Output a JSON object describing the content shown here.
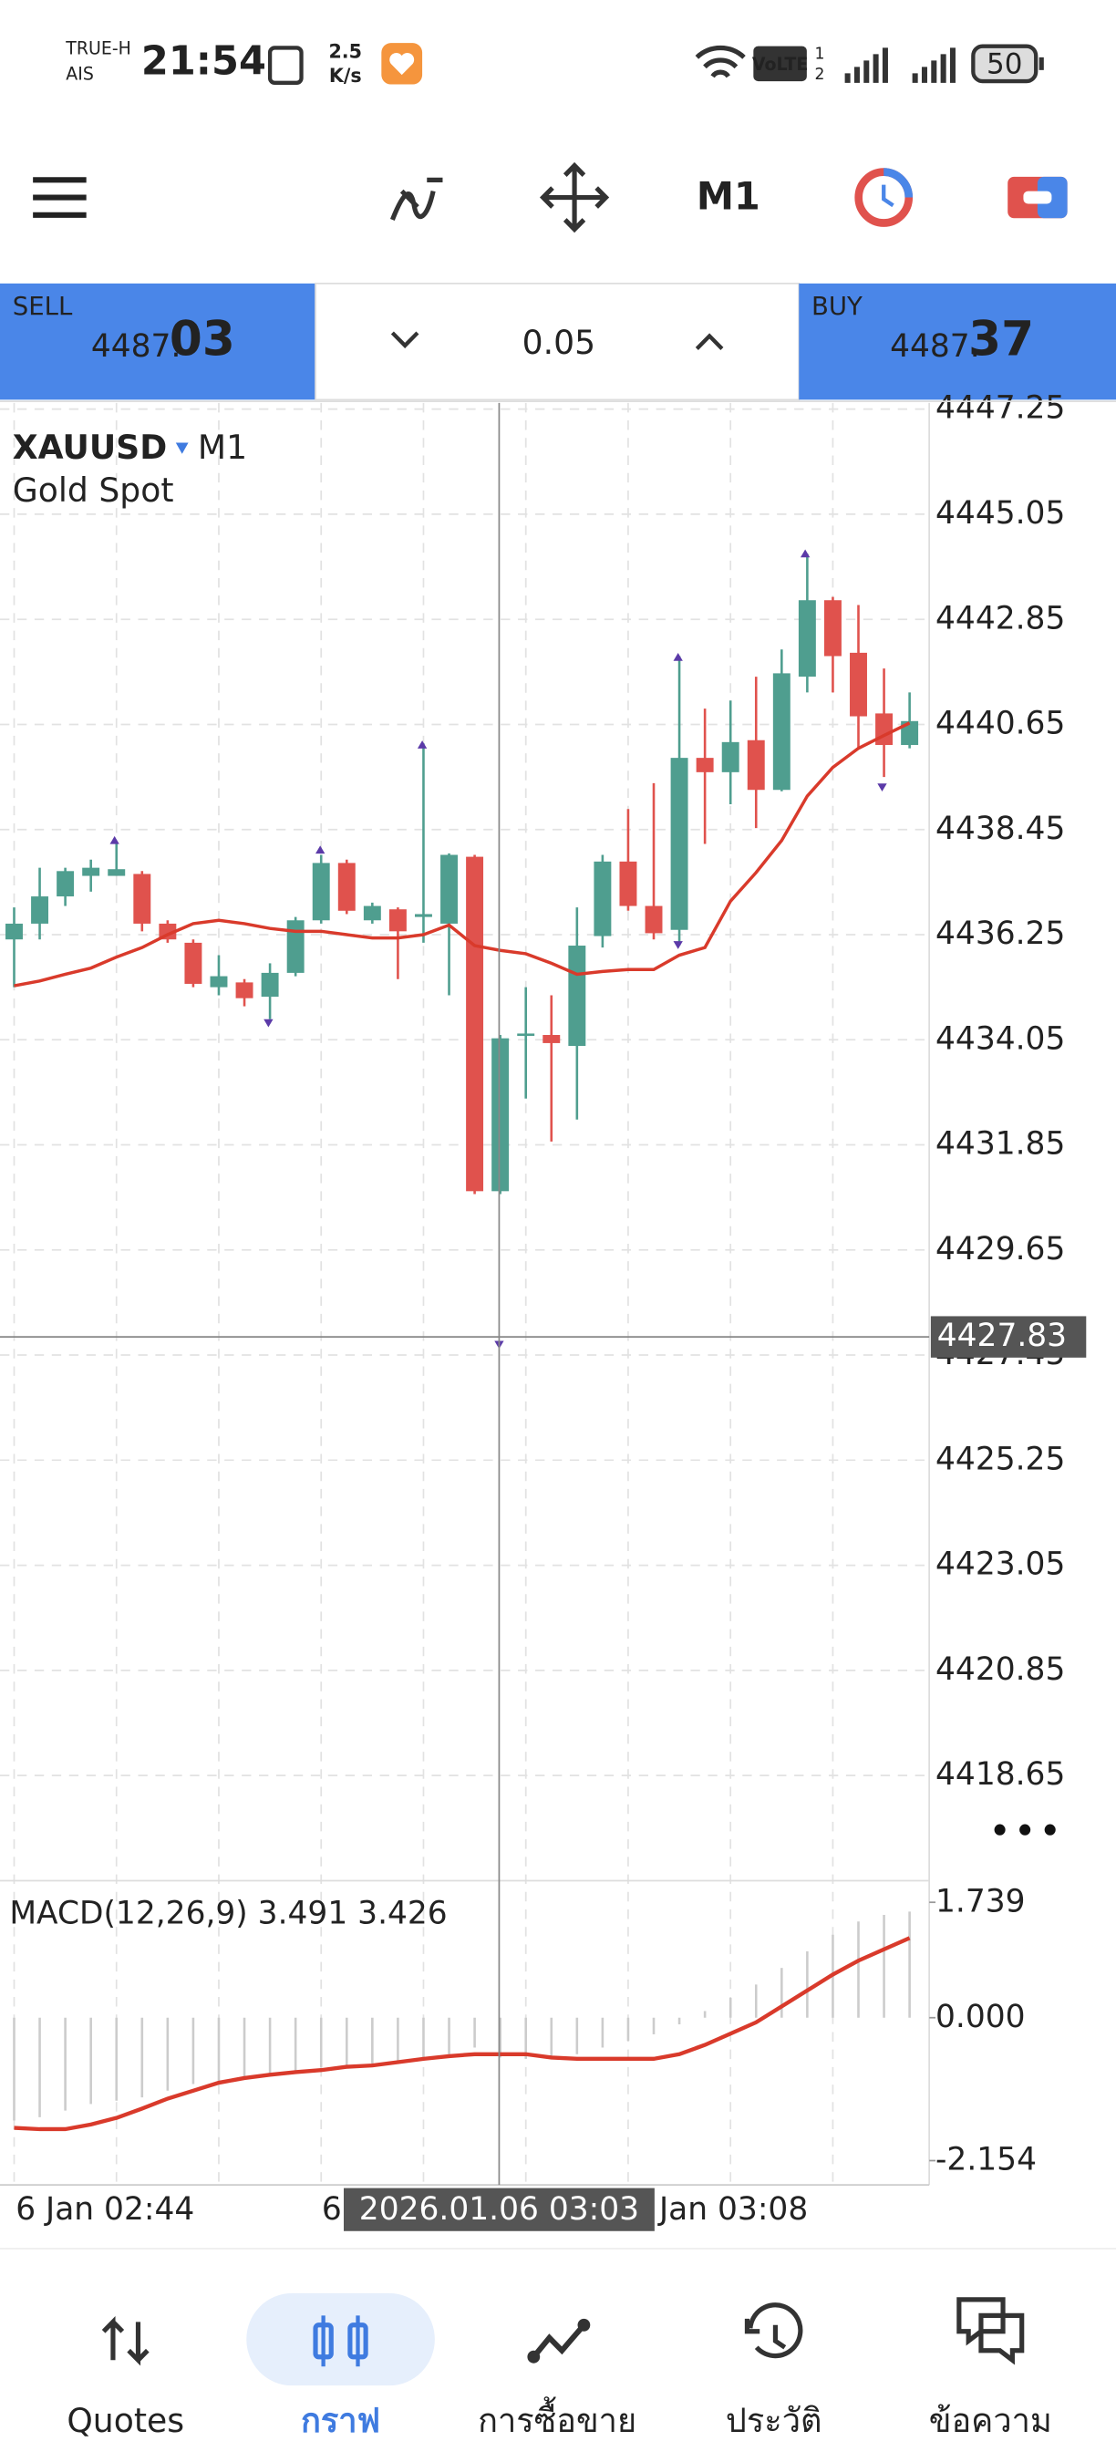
{
  "status_bar": {
    "carrier_1": "TRUE-H",
    "carrier_2": "AIS",
    "time": "21:54",
    "speed_value": "2.5",
    "speed_unit": "K/s",
    "volte": "VoLTE",
    "sim_1": "1",
    "sim_2": "2",
    "battery": "50"
  },
  "toolbar": {
    "timeframe": "M1"
  },
  "trade_panel": {
    "sell_label": "SELL",
    "sell_price_main": "4487.",
    "sell_price_big": "03",
    "volume": "0.05",
    "buy_label": "BUY",
    "buy_price_main": "4487.",
    "buy_price_big": "37"
  },
  "chart_data": {
    "type": "candlestick",
    "symbol": "XAUUSD",
    "timeframe": "M1",
    "description": "Gold Spot",
    "ylim": [
      4416.48,
      4447.38
    ],
    "yticks": [
      4447.25,
      4445.05,
      4442.85,
      4440.65,
      4438.45,
      4436.25,
      4434.05,
      4431.85,
      4429.65,
      4427.45,
      4425.25,
      4423.05,
      4420.85,
      4418.65
    ],
    "grid": true,
    "current_price": 4427.83,
    "up_color": "#4f9e8f",
    "down_color": "#e0524d",
    "open": [
      4436.15,
      4436.48,
      4437.05,
      4437.48,
      4437.48,
      4437.52,
      4436.48,
      4436.08,
      4435.15,
      4435.25,
      4434.95,
      4435.45,
      4436.55,
      4437.75,
      4436.55,
      4436.78,
      4436.62,
      4436.48,
      4437.88,
      4430.88,
      4434.15,
      4434.15,
      4433.92,
      4436.22,
      4437.78,
      4436.85,
      4436.35,
      4439.95,
      4439.65,
      4440.32,
      4439.28,
      4441.65,
      4443.25,
      4442.15,
      4440.88,
      4440.22
    ],
    "high": [
      4436.82,
      4437.65,
      4437.65,
      4437.82,
      4438.15,
      4437.58,
      4436.55,
      4436.15,
      4435.82,
      4435.32,
      4435.65,
      4436.62,
      4437.92,
      4437.82,
      4436.92,
      4436.82,
      4440.25,
      4437.95,
      4437.92,
      4434.15,
      4435.15,
      4434.98,
      4436.82,
      4437.92,
      4438.88,
      4439.42,
      4442.08,
      4440.98,
      4441.15,
      4441.65,
      4442.22,
      4444.22,
      4443.32,
      4443.15,
      4441.82,
      4441.32
    ],
    "low": [
      4435.15,
      4436.15,
      4436.85,
      4437.15,
      4437.48,
      4436.32,
      4436.08,
      4435.15,
      4434.98,
      4434.75,
      4434.48,
      4435.38,
      4436.48,
      4436.68,
      4436.48,
      4435.32,
      4436.08,
      4434.98,
      4430.82,
      4430.82,
      4432.82,
      4431.92,
      4432.38,
      4435.98,
      4436.75,
      4436.15,
      4436.02,
      4438.15,
      4438.98,
      4438.48,
      4439.25,
      4441.32,
      4441.32,
      4440.15,
      4439.55,
      4440.15
    ],
    "close": [
      4436.48,
      4437.05,
      4437.58,
      4437.65,
      4437.62,
      4436.48,
      4436.15,
      4435.22,
      4435.38,
      4434.92,
      4435.45,
      4436.55,
      4437.75,
      4436.75,
      4436.85,
      4436.32,
      4436.68,
      4437.92,
      4430.88,
      4434.08,
      4434.18,
      4433.98,
      4436.02,
      4437.78,
      4436.85,
      4436.28,
      4439.95,
      4439.65,
      4440.28,
      4439.28,
      4441.72,
      4443.25,
      4442.08,
      4440.82,
      4440.22,
      4440.72
    ],
    "moving_average": {
      "color": "#d93a2b",
      "values": [
        4435.18,
        4435.28,
        4435.42,
        4435.55,
        4435.78,
        4435.98,
        4436.25,
        4436.48,
        4436.55,
        4436.48,
        4436.38,
        4436.32,
        4436.32,
        4436.25,
        4436.18,
        4436.18,
        4436.25,
        4436.45,
        4436.02,
        4435.92,
        4435.85,
        4435.65,
        4435.42,
        4435.48,
        4435.52,
        4435.52,
        4435.82,
        4435.98,
        4436.95,
        4437.55,
        4438.22,
        4439.15,
        4439.75,
        4440.15,
        4440.42,
        4440.68
      ]
    }
  },
  "macd": {
    "label": "MACD(12,26,9) 3.491 3.426",
    "ylim": [
      -2.52,
      2.016
    ],
    "yticks": [
      1.739,
      {
        "value": 0,
        "label": "0.000"
      },
      -2.154
    ],
    "histogram_color": "#cccccc",
    "histogram": [
      -1.55,
      -1.5,
      -1.4,
      -1.3,
      -1.25,
      -1.2,
      -1.1,
      -1.0,
      -0.95,
      -0.9,
      -0.85,
      -0.8,
      -0.75,
      -0.72,
      -0.7,
      -0.68,
      -0.62,
      -0.55,
      -0.45,
      -0.6,
      -0.62,
      -0.6,
      -0.55,
      -0.45,
      -0.35,
      -0.25,
      -0.1,
      0.1,
      0.3,
      0.5,
      0.75,
      1.0,
      1.25,
      1.45,
      1.55,
      1.6
    ],
    "signal_color": "#d93a2b",
    "signal": [
      -1.66,
      -1.68,
      -1.68,
      -1.61,
      -1.51,
      -1.37,
      -1.22,
      -1.1,
      -0.98,
      -0.91,
      -0.86,
      -0.82,
      -0.79,
      -0.74,
      -0.72,
      -0.67,
      -0.62,
      -0.58,
      -0.55,
      -0.55,
      -0.55,
      -0.6,
      -0.62,
      -0.62,
      -0.62,
      -0.62,
      -0.55,
      -0.41,
      -0.24,
      -0.07,
      0.17,
      0.41,
      0.65,
      0.86,
      1.03,
      1.2
    ]
  },
  "time_axis": {
    "labels": [
      "6 Jan 02:44",
      "6",
      "Jan 03:08"
    ],
    "crosshair_time": "2026.01.06 03:03"
  },
  "bottom_nav": {
    "items": [
      "Quotes",
      "กราฟ",
      "การซื้อขาย",
      "ประวัติ",
      "ข้อความ"
    ]
  }
}
